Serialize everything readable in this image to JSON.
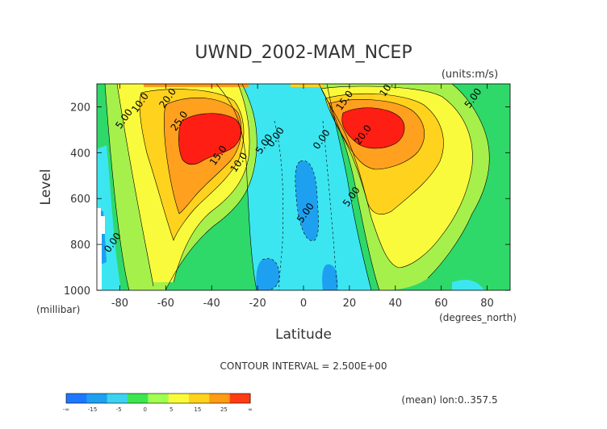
{
  "chart_data": {
    "type": "heatmap",
    "title": "UWND_2002-MAM_NCEP",
    "units_label": "(units:m/s)",
    "xlabel": "Latitude",
    "ylabel": "Level",
    "x_unit_label": "(degrees_north)",
    "y_unit_label": "(millibar)",
    "xlim": [
      -90,
      90
    ],
    "ylim": [
      1000,
      100
    ],
    "x_ticks": [
      -80,
      -60,
      -40,
      -20,
      0,
      20,
      40,
      60,
      80
    ],
    "y_ticks": [
      200,
      400,
      600,
      800,
      1000
    ],
    "contour_interval_label": "CONTOUR INTERVAL = 2.500E+00",
    "footer_note": "(mean) lon:0..357.5",
    "contour_labels": [
      {
        "text": "20.0",
        "lat": -58,
        "level": 170
      },
      {
        "text": "25.0",
        "lat": -53,
        "level": 270
      },
      {
        "text": "10.0",
        "lat": -70,
        "level": 190
      },
      {
        "text": "5.00",
        "lat": -77,
        "level": 260
      },
      {
        "text": "15.0",
        "lat": -36,
        "level": 420
      },
      {
        "text": "10.0",
        "lat": -27,
        "level": 450
      },
      {
        "text": "5.00",
        "lat": -16,
        "level": 370
      },
      {
        "text": "0.00",
        "lat": -11,
        "level": 340
      },
      {
        "text": "0.00",
        "lat": 9,
        "level": 350
      },
      {
        "text": "5.00",
        "lat": 2,
        "level": 670
      },
      {
        "text": "10.0",
        "lat": 38,
        "level": 120
      },
      {
        "text": "15.0",
        "lat": 19,
        "level": 180
      },
      {
        "text": "20.0",
        "lat": 27,
        "level": 330
      },
      {
        "text": "5.00",
        "lat": 75,
        "level": 170
      },
      {
        "text": "5.00",
        "lat": 22,
        "level": 600
      },
      {
        "text": "0.00",
        "lat": -82,
        "level": 800
      }
    ],
    "colorbar": {
      "tick_labels": [
        "-∞",
        "-15",
        "-5",
        "0",
        "5",
        "15",
        "25",
        "∞"
      ],
      "colors": [
        "#1e78ff",
        "#1ea0f0",
        "#3cd2f0",
        "#3ce650",
        "#a0ff50",
        "#fafa3c",
        "#ffd21e",
        "#ff9b14",
        "#ff3c14"
      ]
    },
    "levels_colors": {
      "lt_-5": "#1ea0f0",
      "-5_0": "#3ce6f0",
      "0_5": "#2ed96a",
      "5_10": "#a6f04c",
      "10_15": "#fafa3c",
      "15_20": "#ffd21e",
      "20_25": "#ffa01e",
      "gt_25": "#ff1e14"
    }
  }
}
